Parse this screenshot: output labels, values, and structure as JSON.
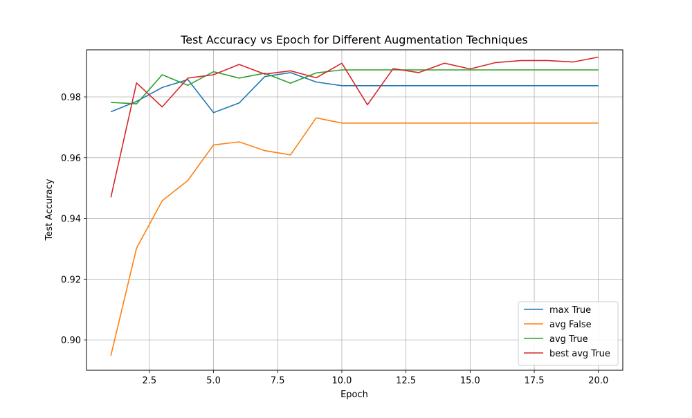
{
  "chart_data": {
    "type": "line",
    "title": "Test Accuracy vs Epoch for Different Augmentation Techniques",
    "xlabel": "Epoch",
    "ylabel": "Test Accuracy",
    "xlim": [
      0.05,
      20.95
    ],
    "ylim": [
      0.89,
      0.9955
    ],
    "xticks": [
      2.5,
      5.0,
      7.5,
      10.0,
      12.5,
      15.0,
      17.5,
      20.0
    ],
    "xtick_labels": [
      "2.5",
      "5.0",
      "7.5",
      "10.0",
      "12.5",
      "15.0",
      "17.5",
      "20.0"
    ],
    "yticks": [
      0.9,
      0.92,
      0.94,
      0.96,
      0.98
    ],
    "ytick_labels": [
      "0.90",
      "0.92",
      "0.94",
      "0.96",
      "0.98"
    ],
    "grid": true,
    "legend_position": "lower-right",
    "x": [
      1,
      2,
      3,
      4,
      5,
      6,
      7,
      8,
      9,
      10,
      11,
      12,
      13,
      14,
      15,
      16,
      17,
      18,
      19,
      20
    ],
    "series": [
      {
        "name": "max True",
        "color": "#1f77b4",
        "values": [
          0.9751,
          0.9785,
          0.9831,
          0.9857,
          0.9748,
          0.978,
          0.9867,
          0.988,
          0.9849,
          0.9837,
          0.9837,
          0.9837,
          0.9837,
          0.9837,
          0.9837,
          0.9837,
          0.9837,
          0.9837,
          0.9837,
          0.9837
        ]
      },
      {
        "name": "avg False",
        "color": "#ff7f0e",
        "values": [
          0.8948,
          0.9302,
          0.9458,
          0.9525,
          0.9642,
          0.9652,
          0.9623,
          0.9609,
          0.9731,
          0.9714,
          0.9714,
          0.9714,
          0.9714,
          0.9714,
          0.9714,
          0.9714,
          0.9714,
          0.9714,
          0.9714,
          0.9714
        ]
      },
      {
        "name": "avg True",
        "color": "#2ca02c",
        "values": [
          0.9782,
          0.9777,
          0.9873,
          0.9838,
          0.9883,
          0.9862,
          0.9878,
          0.9845,
          0.9879,
          0.9889,
          0.9889,
          0.9889,
          0.9889,
          0.9889,
          0.9889,
          0.9889,
          0.9889,
          0.9889,
          0.9889,
          0.9889
        ]
      },
      {
        "name": "best avg True",
        "color": "#d62728",
        "values": [
          0.9469,
          0.9846,
          0.9767,
          0.9862,
          0.9873,
          0.9907,
          0.9875,
          0.9886,
          0.9863,
          0.9911,
          0.9774,
          0.9893,
          0.988,
          0.9911,
          0.9892,
          0.9913,
          0.992,
          0.992,
          0.9915,
          0.9931
        ]
      }
    ]
  }
}
